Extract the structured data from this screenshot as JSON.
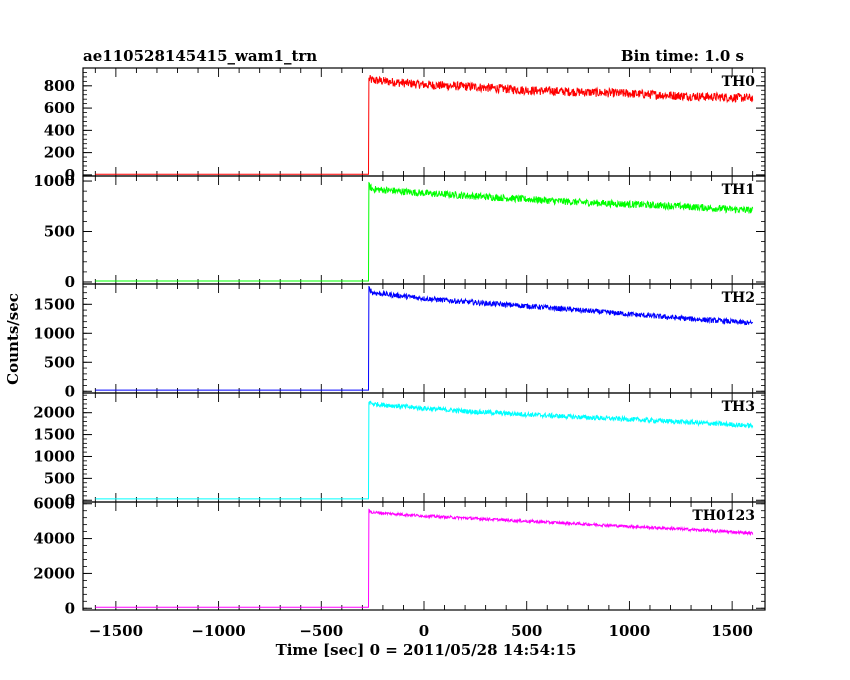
{
  "chart_data": {
    "type": "line",
    "title": "ae110528145415_wam1_trn",
    "subtitle": "Bin time: 1.0 s",
    "xlabel": "Time [sec] 0 = 2011/05/28 14:54:15",
    "ylabel": "Counts/sec",
    "xlim": [
      -1660,
      1660
    ],
    "x_ticks": [
      -1500,
      -1000,
      -500,
      0,
      500,
      1000,
      1500
    ],
    "x_tick_labels": [
      "−1500",
      "−1000",
      "−500",
      "0",
      "500",
      "1000",
      "1500"
    ],
    "grid": false,
    "panels": [
      {
        "name": "TH0",
        "color": "#ff0000",
        "ylim": [
          -10,
          960
        ],
        "y_ticks": [
          0,
          200,
          400,
          600,
          800
        ],
        "y_tick_labels": [
          "0",
          "200",
          "400",
          "600",
          "800"
        ],
        "series": {
          "x": [
            -1600,
            -270,
            -268,
            -250,
            0,
            250,
            500,
            750,
            1000,
            1250,
            1500,
            1600
          ],
          "values": [
            5,
            5,
            860,
            850,
            810,
            790,
            760,
            745,
            730,
            710,
            695,
            690
          ],
          "noise": 40
        }
      },
      {
        "name": "TH1",
        "color": "#00ff00",
        "ylim": [
          -20,
          1050
        ],
        "y_ticks": [
          0,
          500,
          1000
        ],
        "y_tick_labels": [
          "0",
          "500",
          "1000"
        ],
        "series": {
          "x": [
            -1600,
            -270,
            -268,
            -250,
            0,
            250,
            500,
            750,
            1000,
            1250,
            1500,
            1600
          ],
          "values": [
            10,
            10,
            950,
            920,
            880,
            850,
            820,
            790,
            770,
            750,
            720,
            710
          ],
          "noise": 35
        }
      },
      {
        "name": "TH2",
        "color": "#0000ff",
        "ylim": [
          -30,
          1850
        ],
        "y_ticks": [
          0,
          500,
          1000,
          1500
        ],
        "y_tick_labels": [
          "0",
          "500",
          "1000",
          "1500"
        ],
        "series": {
          "x": [
            -1600,
            -270,
            -268,
            -250,
            0,
            250,
            500,
            750,
            1000,
            1250,
            1500,
            1600
          ],
          "values": [
            20,
            20,
            1780,
            1700,
            1600,
            1530,
            1470,
            1400,
            1330,
            1260,
            1200,
            1170
          ],
          "noise": 45
        }
      },
      {
        "name": "TH3",
        "color": "#00ffff",
        "ylim": [
          -40,
          2450
        ],
        "y_ticks": [
          0,
          500,
          1000,
          1500,
          2000
        ],
        "y_tick_labels": [
          "0",
          "500",
          "1000",
          "1500",
          "2000"
        ],
        "series": {
          "x": [
            -1600,
            -270,
            -268,
            -250,
            0,
            250,
            500,
            750,
            1000,
            1250,
            1500,
            1600
          ],
          "values": [
            30,
            30,
            2250,
            2200,
            2100,
            2020,
            1960,
            1900,
            1850,
            1790,
            1730,
            1700
          ],
          "noise": 55
        }
      },
      {
        "name": "TH0123",
        "color": "#ff00ff",
        "ylim": [
          -100,
          6100
        ],
        "y_ticks": [
          0,
          2000,
          4000,
          6000
        ],
        "y_tick_labels": [
          "0",
          "2000",
          "4000",
          "6000"
        ],
        "series": {
          "x": [
            -1600,
            -270,
            -268,
            -250,
            0,
            250,
            500,
            750,
            1000,
            1250,
            1500,
            1600
          ],
          "values": [
            60,
            60,
            5600,
            5500,
            5300,
            5150,
            5000,
            4850,
            4700,
            4550,
            4380,
            4300
          ],
          "noise": 80
        }
      }
    ]
  }
}
